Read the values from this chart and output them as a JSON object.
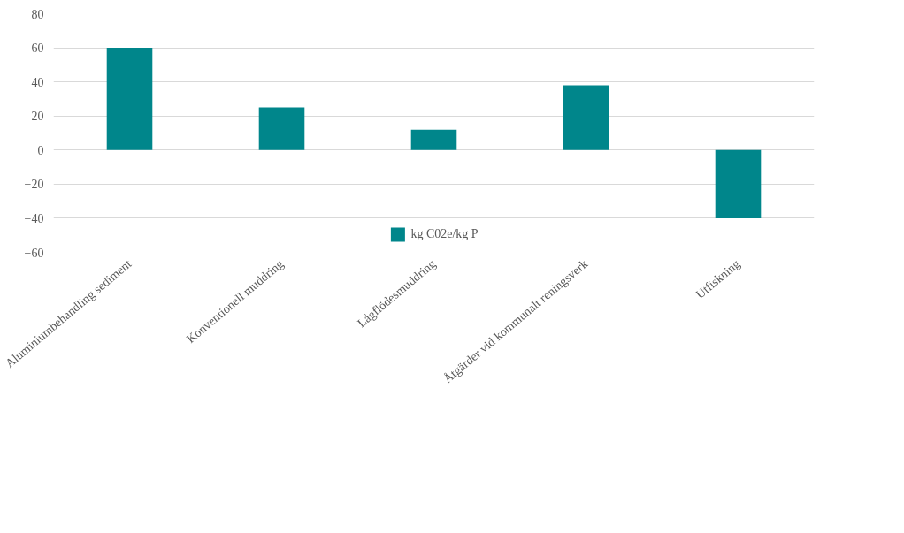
{
  "chart_data": {
    "type": "bar",
    "categories": [
      "Aluminiumbehandling sediment",
      "Konventionell muddring",
      "Lågflödesmuddring",
      "Åtgärder vid kommunalt reningsverk",
      "Utfiskning"
    ],
    "series": [
      {
        "name": "kg C02e/kg P",
        "color": "#00868b",
        "values": [
          60,
          25,
          12,
          38,
          -40
        ]
      }
    ],
    "ylim": [
      -60,
      80
    ],
    "yticks": [
      -60,
      -40,
      -20,
      0,
      20,
      40,
      60,
      80
    ],
    "grid": "y",
    "legend": "bottom"
  }
}
